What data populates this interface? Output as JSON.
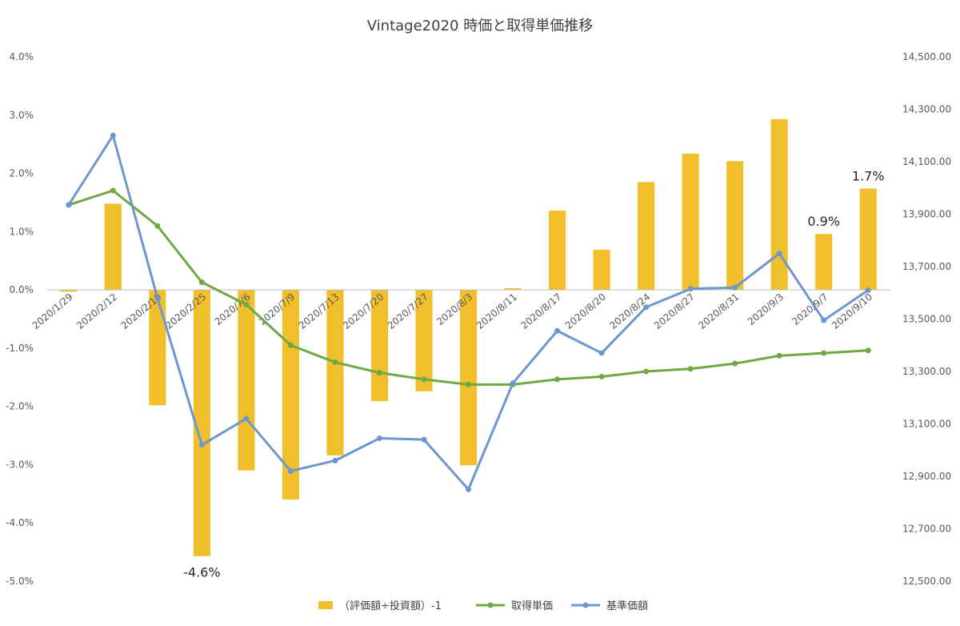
{
  "chart_data": {
    "type": "bar+line",
    "title": "Vintage2020 時価と取得単価推移",
    "categories": [
      "2020/1/29",
      "2020/2/12",
      "2020/2/19",
      "2020/2/25",
      "2020/7/6",
      "2020/7/9",
      "2020/7/13",
      "2020/7/20",
      "2020/7/27",
      "2020/8/3",
      "2020/8/11",
      "2020/8/17",
      "2020/8/20",
      "2020/8/24",
      "2020/8/27",
      "2020/8/31",
      "2020/9/3",
      "2020/9/7",
      "2020/9/10"
    ],
    "left_axis": {
      "ylim": [
        -0.05,
        0.04
      ],
      "ticks": [
        0.04,
        0.03,
        0.02,
        0.01,
        0.0,
        -0.01,
        -0.02,
        -0.03,
        -0.04,
        -0.05
      ],
      "tick_labels": [
        "4.0%",
        "3.0%",
        "2.0%",
        "1.0%",
        "0.0%",
        "-1.0%",
        "-2.0%",
        "-3.0%",
        "-4.0%",
        "-5.0%"
      ]
    },
    "right_axis": {
      "ylim": [
        12500,
        14500
      ],
      "ticks": [
        14500,
        14300,
        14100,
        13900,
        13700,
        13500,
        13300,
        13100,
        12900,
        12700,
        12500
      ],
      "tick_labels": [
        "14,500.00",
        "14,300.00",
        "14,100.00",
        "13,900.00",
        "13,700.00",
        "13,500.00",
        "13,300.00",
        "13,100.00",
        "12,900.00",
        "12,700.00",
        "12,500.00"
      ]
    },
    "series": [
      {
        "name": "（評価額÷投資額）-1",
        "type": "bar",
        "axis": "left",
        "color": "#F0BF2B",
        "values": [
          -0.0003,
          0.0148,
          -0.0198,
          -0.0457,
          -0.031,
          -0.036,
          -0.0284,
          -0.0191,
          -0.0174,
          -0.0301,
          0.0003,
          0.0136,
          0.0069,
          0.0185,
          0.0234,
          0.0221,
          0.0293,
          0.0096,
          0.0174
        ]
      },
      {
        "name": "取得単価",
        "type": "line",
        "axis": "right",
        "color": "#70A845",
        "values": [
          13935,
          13990,
          13855,
          13640,
          13555,
          13400,
          13335,
          13295,
          13270,
          13250,
          13250,
          13270,
          13280,
          13300,
          13310,
          13330,
          13360,
          13370,
          13380
        ]
      },
      {
        "name": "基準価額",
        "type": "line",
        "axis": "right",
        "color": "#6E97CE",
        "values": [
          13935,
          14200,
          13580,
          13020,
          13120,
          12920,
          12960,
          13045,
          13040,
          12850,
          13255,
          13455,
          13370,
          13545,
          13615,
          13620,
          13750,
          13495,
          13610
        ]
      }
    ],
    "annotations": [
      {
        "text": "-4.6%",
        "category_index": 3,
        "series": 0
      },
      {
        "text": "0.9%",
        "category_index": 17,
        "series": 0
      },
      {
        "text": "1.7%",
        "category_index": 18,
        "series": 0
      }
    ],
    "legend_position": "bottom",
    "grid": false
  }
}
